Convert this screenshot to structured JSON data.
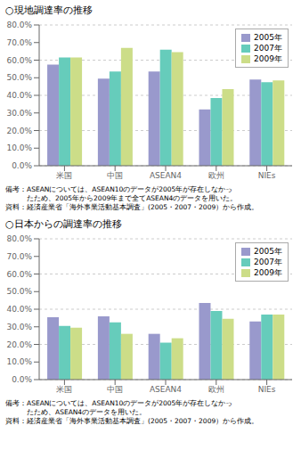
{
  "chart_data": [
    {
      "type": "bar",
      "title": "○現地調達率の推移",
      "categories": [
        "米国",
        "中国",
        "ASEAN4",
        "欧州",
        "NIEs"
      ],
      "series": [
        {
          "name": "2005年",
          "color": "#9999cc",
          "values": [
            57.5,
            49.5,
            53.5,
            32.0,
            49.0
          ]
        },
        {
          "name": "2007年",
          "color": "#66ccbb",
          "values": [
            61.5,
            53.5,
            66.0,
            38.5,
            47.5
          ]
        },
        {
          "name": "2009年",
          "color": "#ccdd88",
          "values": [
            61.5,
            67.0,
            64.5,
            43.5,
            48.5
          ]
        }
      ],
      "ylim": [
        0,
        80
      ],
      "yticks": [
        {
          "value": 0,
          "label": "0.0%"
        },
        {
          "value": 10,
          "label": "10.0%"
        },
        {
          "value": 20,
          "label": "20.0%"
        },
        {
          "value": 30,
          "label": "30.0%"
        },
        {
          "value": 40,
          "label": "40.0%"
        },
        {
          "value": 50,
          "label": "50.0%"
        },
        {
          "value": 60,
          "label": "60.0%"
        },
        {
          "value": 70,
          "label": "70.0%"
        },
        {
          "value": 80,
          "label": "80.0%"
        }
      ],
      "grid": true,
      "legend": "upper right",
      "annotations": [
        "備考：ASEANについては、ASEAN10のデータが2005年が存在しなかっ\n　　　たため、2005年から2009年まで全てASEAN4のデータを用いた。\n資料：経済産業省「海外事業活動基本調査」(2005・2007・2009）から作成。"
      ]
    },
    {
      "type": "bar",
      "title": "○日本からの調達率の推移",
      "categories": [
        "米国",
        "中国",
        "ASEAN4",
        "欧州",
        "NIEs"
      ],
      "series": [
        {
          "name": "2005年",
          "color": "#9999cc",
          "values": [
            35.5,
            36.0,
            26.0,
            43.5,
            33.0
          ]
        },
        {
          "name": "2007年",
          "color": "#66ccbb",
          "values": [
            30.5,
            32.5,
            21.0,
            39.0,
            37.0
          ]
        },
        {
          "name": "2009年",
          "color": "#ccdd88",
          "values": [
            29.5,
            26.0,
            23.5,
            34.5,
            37.0
          ]
        }
      ],
      "ylim": [
        0,
        80
      ],
      "yticks": [
        {
          "value": 0,
          "label": "0.0%"
        },
        {
          "value": 10,
          "label": "10.0%"
        },
        {
          "value": 20,
          "label": "20.0%"
        },
        {
          "value": 30,
          "label": "30.0%"
        },
        {
          "value": 40,
          "label": "40.0%"
        },
        {
          "value": 50,
          "label": "50.0%"
        },
        {
          "value": 60,
          "label": "60.0%"
        },
        {
          "value": 70,
          "label": "70.0%"
        },
        {
          "value": 80,
          "label": "80.0%"
        }
      ],
      "grid": true,
      "legend": "upper right",
      "annotations": [
        "備考：ASEANについては、ASEAN10のデータが2005年が存在しなかっ\n　　　たため、ASEAN4のデータを用いた。\n資料：経済産業省「海外事業活動基本調査」(2005・2007・2009）から作成。"
      ]
    }
  ]
}
